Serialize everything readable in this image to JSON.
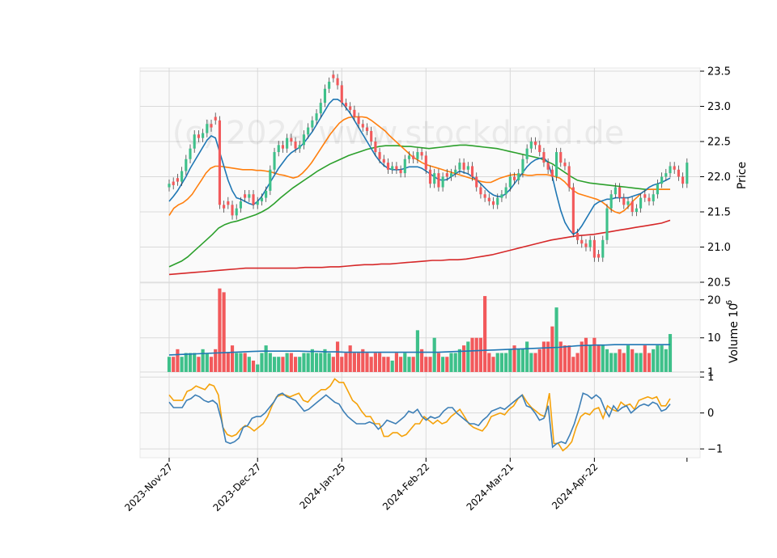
{
  "chart_data": {
    "type": "candlestick",
    "watermark": "(c) 2024 www.stockdroid.de",
    "x_ticks": [
      "2023-Nov-27",
      "2023-Dec-27",
      "2024-Jan-25",
      "2024-Feb-22",
      "2024-Mar-21",
      "2024-Apr-22"
    ],
    "x_tick_index": [
      0,
      21,
      41,
      61,
      81,
      101
    ],
    "n_bars": 120,
    "price_panel": {
      "ylabel": "Price",
      "ylim": [
        20.5,
        23.5
      ],
      "yticks": [
        "20.5",
        "21.0",
        "21.5",
        "22.0",
        "22.5",
        "23.0",
        "23.5"
      ],
      "ohlc_close": [
        21.9,
        21.88,
        21.93,
        22.08,
        22.25,
        22.4,
        22.6,
        22.55,
        22.62,
        22.75,
        22.7,
        22.8,
        21.6,
        21.55,
        21.6,
        21.45,
        21.55,
        21.65,
        21.7,
        21.75,
        21.6,
        21.65,
        21.7,
        21.8,
        22.1,
        22.35,
        22.45,
        22.4,
        22.55,
        22.5,
        22.4,
        22.45,
        22.6,
        22.7,
        22.8,
        22.9,
        23.05,
        23.25,
        23.35,
        23.4,
        23.3,
        23.05,
        23.0,
        22.95,
        22.85,
        22.75,
        22.7,
        22.65,
        22.5,
        22.35,
        22.25,
        22.2,
        22.1,
        22.15,
        22.1,
        22.05,
        22.25,
        22.3,
        22.25,
        22.35,
        22.3,
        22.1,
        21.9,
        22.05,
        21.85,
        22.0,
        22.0,
        22.05,
        22.1,
        22.2,
        22.1,
        22.15,
        22.0,
        21.85,
        21.75,
        21.7,
        21.65,
        21.6,
        21.7,
        21.75,
        21.85,
        22.0,
        21.95,
        22.05,
        22.25,
        22.4,
        22.5,
        22.45,
        22.35,
        22.2,
        22.1,
        22.0,
        22.35,
        22.2,
        22.15,
        21.85,
        21.2,
        21.1,
        21.05,
        21.0,
        21.1,
        20.85,
        20.85,
        21.1,
        21.55,
        21.75,
        21.85,
        21.7,
        21.6,
        21.65,
        21.5,
        21.55,
        21.7,
        21.7,
        21.65,
        21.75,
        21.9,
        22.0,
        22.05,
        22.15,
        22.1,
        22.0,
        21.9,
        22.2
      ],
      "ohlc_up": [
        1,
        0,
        0,
        1,
        1,
        1,
        1,
        0,
        1,
        1,
        0,
        0,
        0,
        0,
        0,
        0,
        1,
        1,
        0,
        1,
        0,
        1,
        1,
        1,
        1,
        1,
        1,
        0,
        1,
        0,
        0,
        1,
        1,
        1,
        1,
        1,
        1,
        1,
        1,
        0,
        0,
        0,
        0,
        0,
        0,
        0,
        0,
        0,
        0,
        0,
        0,
        0,
        0,
        1,
        0,
        0,
        1,
        1,
        0,
        1,
        0,
        0,
        0,
        1,
        0,
        1,
        0,
        1,
        1,
        1,
        0,
        1,
        0,
        0,
        0,
        0,
        0,
        0,
        1,
        1,
        1,
        1,
        0,
        1,
        1,
        1,
        1,
        0,
        0,
        0,
        0,
        0,
        1,
        0,
        0,
        0,
        0,
        0,
        0,
        0,
        1,
        0,
        0,
        1,
        1,
        1,
        1,
        0,
        0,
        1,
        0,
        1,
        1,
        0,
        0,
        1,
        1,
        1,
        1,
        1,
        0,
        0,
        0,
        1
      ],
      "ma_short_blue": [
        21.65,
        21.72,
        21.8,
        21.9,
        22.0,
        22.12,
        22.22,
        22.32,
        22.42,
        22.52,
        22.58,
        22.55,
        22.35,
        22.15,
        21.95,
        21.8,
        21.7,
        21.68,
        21.65,
        21.62,
        21.6,
        21.65,
        21.72,
        21.82,
        21.92,
        22.02,
        22.12,
        22.2,
        22.28,
        22.34,
        22.38,
        22.42,
        22.48,
        22.56,
        22.64,
        22.74,
        22.84,
        22.94,
        23.04,
        23.1,
        23.1,
        23.06,
        22.98,
        22.9,
        22.8,
        22.7,
        22.6,
        22.5,
        22.4,
        22.3,
        22.22,
        22.16,
        22.12,
        22.1,
        22.1,
        22.1,
        22.12,
        22.14,
        22.14,
        22.14,
        22.12,
        22.08,
        22.04,
        22.0,
        21.96,
        21.95,
        21.96,
        22.0,
        22.04,
        22.08,
        22.06,
        22.04,
        22.0,
        21.96,
        21.9,
        21.84,
        21.78,
        21.74,
        21.72,
        21.72,
        21.76,
        21.82,
        21.9,
        21.98,
        22.06,
        22.14,
        22.2,
        22.24,
        22.26,
        22.27,
        22.2,
        22.0,
        21.75,
        21.52,
        21.35,
        21.25,
        21.18,
        21.22,
        21.3,
        21.4,
        21.5,
        21.6,
        21.64,
        21.66,
        21.68,
        21.68,
        21.7,
        21.7,
        21.7,
        21.7,
        21.72,
        21.74,
        21.76,
        21.8,
        21.85,
        21.88,
        21.9,
        21.92,
        21.95,
        21.98
      ],
      "ma_mid_orange": [
        21.45,
        21.55,
        21.6,
        21.63,
        21.68,
        21.75,
        21.85,
        21.95,
        22.05,
        22.12,
        22.15,
        22.15,
        22.14,
        22.13,
        22.12,
        22.11,
        22.1,
        22.1,
        22.1,
        22.09,
        22.09,
        22.08,
        22.07,
        22.05,
        22.03,
        22.02,
        22.0,
        21.98,
        22.0,
        22.05,
        22.12,
        22.2,
        22.3,
        22.4,
        22.5,
        22.6,
        22.68,
        22.76,
        22.81,
        22.84,
        22.85,
        22.85,
        22.85,
        22.84,
        22.8,
        22.75,
        22.7,
        22.65,
        22.58,
        22.52,
        22.46,
        22.4,
        22.34,
        22.28,
        22.24,
        22.2,
        22.17,
        22.15,
        22.13,
        22.11,
        22.09,
        22.07,
        22.05,
        22.03,
        22.01,
        21.99,
        21.97,
        21.95,
        21.93,
        21.92,
        21.92,
        21.95,
        21.98,
        22.0,
        22.02,
        22.03,
        22.03,
        22.03,
        22.02,
        22.02,
        22.03,
        22.03,
        22.03,
        22.02,
        22.0,
        21.98,
        21.93,
        21.86,
        21.8,
        21.76,
        21.74,
        21.72,
        21.7,
        21.68,
        21.65,
        21.6,
        21.54,
        21.5,
        21.48,
        21.52,
        21.58,
        21.66,
        21.72,
        21.78,
        21.82,
        21.82,
        21.82,
        21.82,
        21.82,
        21.82
      ],
      "ma_long_green": [
        20.72,
        20.76,
        20.8,
        20.86,
        20.94,
        21.02,
        21.1,
        21.18,
        21.27,
        21.32,
        21.35,
        21.37,
        21.4,
        21.43,
        21.46,
        21.5,
        21.55,
        21.62,
        21.7,
        21.77,
        21.84,
        21.9,
        21.96,
        22.02,
        22.08,
        22.13,
        22.18,
        22.22,
        22.26,
        22.3,
        22.33,
        22.36,
        22.39,
        22.41,
        22.43,
        22.44,
        22.44,
        22.44,
        22.43,
        22.43,
        22.42,
        22.41,
        22.4,
        22.41,
        22.42,
        22.43,
        22.44,
        22.45,
        22.45,
        22.44,
        22.43,
        22.42,
        22.41,
        22.4,
        22.38,
        22.36,
        22.34,
        22.32,
        22.3,
        22.28,
        22.26,
        22.22,
        22.18,
        22.12,
        22.06,
        22.0,
        21.95,
        21.93,
        21.91,
        21.9,
        21.89,
        21.88,
        21.87,
        21.86,
        21.85,
        21.84,
        21.83,
        21.82,
        21.82,
        21.82,
        21.82,
        21.82
      ],
      "ma_200_red": [
        20.61,
        20.62,
        20.63,
        20.64,
        20.65,
        20.66,
        20.67,
        20.68,
        20.69,
        20.7,
        20.7,
        20.7,
        20.7,
        20.7,
        20.7,
        20.7,
        20.71,
        20.71,
        20.71,
        20.72,
        20.72,
        20.73,
        20.74,
        20.75,
        20.75,
        20.76,
        20.76,
        20.77,
        20.78,
        20.79,
        20.8,
        20.81,
        20.81,
        20.82,
        20.82,
        20.83,
        20.85,
        20.87,
        20.89,
        20.92,
        20.95,
        20.98,
        21.01,
        21.04,
        21.07,
        21.1,
        21.12,
        21.14,
        21.16,
        21.17,
        21.18,
        21.2,
        21.22,
        21.24,
        21.26,
        21.28,
        21.3,
        21.32,
        21.34,
        21.38
      ]
    },
    "volume_panel": {
      "ylabel": "Volume  10",
      "ylabel_exp": "6",
      "ylim": [
        1,
        24
      ],
      "yticks": [
        "1",
        "10",
        "20"
      ],
      "values": [
        5,
        5,
        7,
        5,
        6,
        6,
        6,
        5,
        7,
        6,
        5,
        7,
        23,
        22,
        6,
        8,
        6,
        6,
        6,
        5,
        4,
        3,
        6,
        8,
        6,
        5,
        5,
        5,
        6,
        6,
        5,
        5,
        6,
        6,
        7,
        6,
        6,
        7,
        6,
        5,
        9,
        5,
        6,
        8,
        6,
        6,
        7,
        6,
        5,
        6,
        6,
        5,
        5,
        4,
        6,
        5,
        6,
        5,
        5,
        12,
        7,
        5,
        5,
        10,
        6,
        5,
        5,
        6,
        6,
        7,
        8,
        9,
        10,
        10,
        10,
        21,
        6,
        5,
        6,
        6,
        6,
        7,
        8,
        7,
        7,
        9,
        6,
        6,
        7,
        9,
        9,
        13,
        18,
        9,
        8,
        8,
        5,
        6,
        9,
        10,
        8,
        10,
        8,
        8,
        7,
        6,
        6,
        7,
        6,
        8,
        7,
        6,
        6,
        8,
        6,
        7,
        8,
        8,
        7,
        11,
        5
      ],
      "avg": [
        5.5,
        5.6,
        5.7,
        5.8,
        5.9,
        6.0,
        6.1,
        6.2,
        6.3,
        6.4,
        6.5,
        6.5,
        6.5,
        6.5,
        6.5,
        6.4,
        6.4,
        6.3,
        6.3,
        6.2,
        6.2,
        6.2,
        6.2,
        6.2,
        6.2,
        6.2,
        6.2,
        6.2,
        6.2,
        6.2,
        6.3,
        6.4,
        6.5,
        6.6,
        6.7,
        6.8,
        6.9,
        7.0,
        7.1,
        7.2,
        7.3,
        7.4,
        7.5,
        7.7,
        7.9,
        8.0,
        8.1,
        8.1,
        8.2,
        8.2,
        8.2,
        8.2,
        8.2,
        8.2,
        8.2
      ]
    },
    "oscillator_panel": {
      "ylim": [
        -1.2,
        1.05
      ],
      "yticks": [
        "−1",
        "0",
        "1"
      ],
      "line_blue": [
        0.3,
        0.15,
        0.15,
        0.15,
        0.35,
        0.4,
        0.5,
        0.45,
        0.35,
        0.3,
        0.35,
        0.25,
        -0.2,
        -0.8,
        -0.85,
        -0.8,
        -0.7,
        -0.4,
        -0.35,
        -0.15,
        -0.1,
        -0.1,
        0.0,
        0.15,
        0.3,
        0.5,
        0.55,
        0.45,
        0.4,
        0.35,
        0.2,
        0.05,
        0.1,
        0.2,
        0.3,
        0.4,
        0.5,
        0.4,
        0.3,
        0.25,
        0.05,
        -0.1,
        -0.2,
        -0.3,
        -0.3,
        -0.3,
        -0.25,
        -0.3,
        -0.45,
        -0.35,
        -0.2,
        -0.25,
        -0.3,
        -0.2,
        -0.1,
        0.05,
        0.0,
        0.1,
        -0.1,
        -0.2,
        -0.1,
        -0.15,
        -0.1,
        0.05,
        0.15,
        0.15,
        0.0,
        -0.1,
        -0.2,
        -0.3,
        -0.3,
        -0.35,
        -0.2,
        -0.1,
        0.05,
        0.1,
        0.15,
        0.1,
        0.2,
        0.3,
        0.4,
        0.5,
        0.2,
        0.15,
        0.0,
        -0.2,
        -0.15,
        0.2,
        -0.95,
        -0.85,
        -0.8,
        -0.85,
        -0.6,
        -0.3,
        0.1,
        0.55,
        0.5,
        0.4,
        0.5,
        0.4,
        0.1,
        -0.1,
        0.2,
        0.05,
        0.15,
        0.2,
        0.0,
        0.1,
        0.2,
        0.25,
        0.2,
        0.3,
        0.25,
        0.05,
        0.1,
        0.25
      ],
      "line_orange": [
        0.5,
        0.35,
        0.35,
        0.35,
        0.6,
        0.65,
        0.75,
        0.7,
        0.65,
        0.8,
        0.75,
        0.5,
        -0.4,
        -0.6,
        -0.65,
        -0.6,
        -0.45,
        -0.35,
        -0.4,
        -0.5,
        -0.4,
        -0.3,
        -0.1,
        0.2,
        0.45,
        0.5,
        0.5,
        0.45,
        0.5,
        0.55,
        0.35,
        0.3,
        0.45,
        0.55,
        0.65,
        0.65,
        0.75,
        0.95,
        0.85,
        0.85,
        0.6,
        0.35,
        0.25,
        0.05,
        -0.1,
        -0.1,
        -0.3,
        -0.3,
        -0.65,
        -0.65,
        -0.55,
        -0.55,
        -0.65,
        -0.6,
        -0.45,
        -0.3,
        -0.3,
        -0.1,
        -0.2,
        -0.3,
        -0.2,
        -0.3,
        -0.25,
        -0.1,
        0.0,
        0.1,
        -0.1,
        -0.3,
        -0.4,
        -0.45,
        -0.5,
        -0.35,
        -0.1,
        -0.05,
        0.0,
        -0.05,
        0.1,
        0.2,
        0.4,
        0.5,
        0.3,
        0.15,
        0.05,
        -0.05,
        -0.1,
        0.55,
        -0.85,
        -0.85,
        -1.05,
        -0.95,
        -0.8,
        -0.4,
        -0.1,
        0.0,
        -0.05,
        0.1,
        0.15,
        -0.15,
        0.2,
        0.1,
        0.05,
        0.3,
        0.2,
        0.25,
        0.1,
        0.35,
        0.4,
        0.45,
        0.4,
        0.45,
        0.2,
        0.2,
        0.4
      ]
    },
    "colors": {
      "up": "#3ec08a",
      "down": "#f2595b",
      "ma_short": "#1f77b4",
      "ma_mid": "#ff7f0e",
      "ma_long": "#2ca02c",
      "ma_200": "#d62728",
      "osc_blue": "#3d7fb6",
      "osc_orange": "#f5a20a",
      "vol_avg": "#1f77b4",
      "panel_bg": "#fafafa",
      "grid": "#d9d9d9"
    }
  }
}
